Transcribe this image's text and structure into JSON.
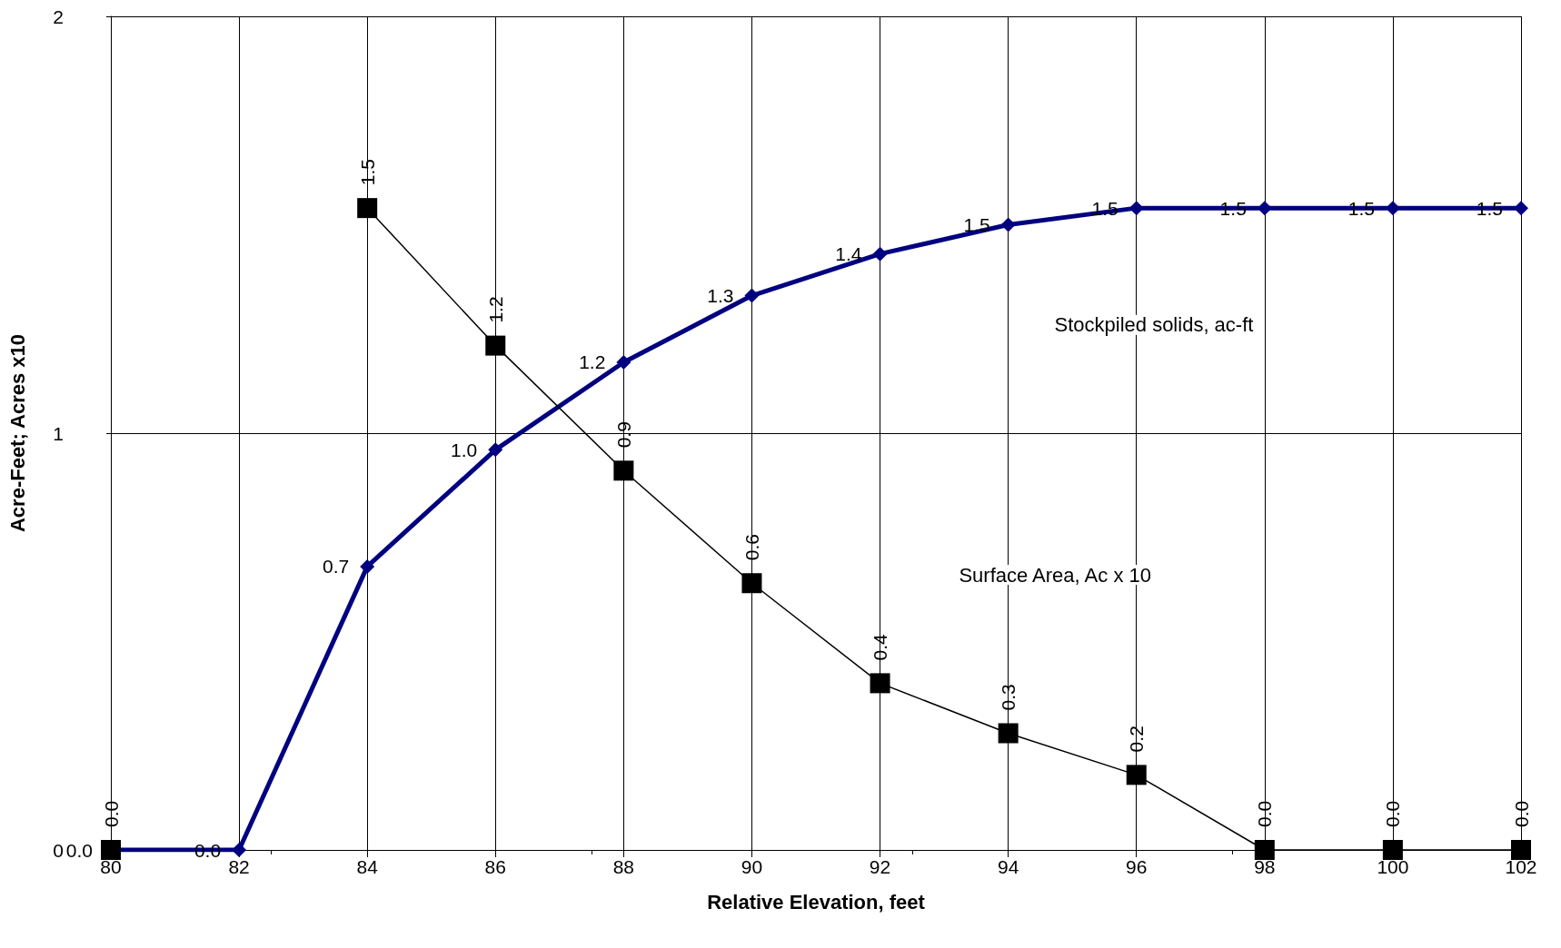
{
  "chart_data": {
    "type": "line",
    "xlabel": "Relative Elevation, feet",
    "ylabel": "Acre-Feet; Acres x10",
    "x": [
      80,
      82,
      84,
      86,
      88,
      90,
      92,
      94,
      96,
      98,
      100,
      102
    ],
    "series": [
      {
        "color": "#000000",
        "marker": "square",
        "values": [
          0,
          null,
          1.54,
          1.21,
          0.91,
          0.64,
          0.4,
          0.28,
          0.18,
          0,
          0,
          0
        ],
        "value_labels": [
          "0.0",
          null,
          "1.5",
          "1.2",
          "0.9",
          "0.6",
          "0.4",
          "0.3",
          "0.2",
          "0.0",
          "0.0",
          "0.0"
        ]
      },
      {
        "color": "#000080",
        "marker": "diamond",
        "values": [
          0,
          0,
          0.68,
          0.96,
          1.17,
          1.33,
          1.43,
          1.5,
          1.54,
          1.54,
          1.54,
          1.54
        ],
        "value_labels": [
          "0.0",
          "0.0",
          "0.7",
          "1.0",
          "1.2",
          "1.3",
          "1.4",
          "1.5",
          "1.5",
          "1.5",
          "1.5",
          "1.5"
        ]
      }
    ],
    "annotations": [
      "Stockpiled solids, ac-ft",
      "Surface Area, Ac x 10"
    ],
    "xlim": [
      80,
      102
    ],
    "xticks": [
      80,
      82,
      84,
      86,
      88,
      90,
      92,
      94,
      96,
      98,
      100,
      102
    ],
    "ylim": [
      0,
      2
    ],
    "yticks": [
      0,
      1,
      2
    ],
    "grid": true,
    "legend": false
  }
}
